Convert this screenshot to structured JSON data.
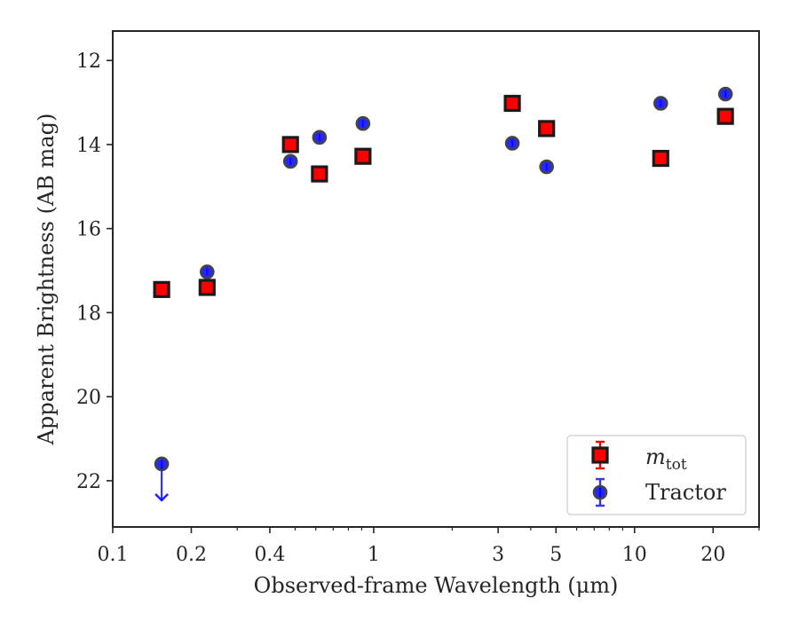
{
  "chart_data": {
    "type": "scatter",
    "xlabel": "Observed-frame Wavelength (μm)",
    "ylabel": "Apparent Brightness (AB mag)",
    "xscale": "log",
    "xlim": [
      0.1,
      30
    ],
    "ylim": [
      23.1,
      11.3
    ],
    "y_inverted": true,
    "x_major_ticks": [
      {
        "value": 0.1,
        "label": "0.1"
      },
      {
        "value": 0.2,
        "label": "0.2"
      },
      {
        "value": 0.4,
        "label": "0.4"
      },
      {
        "value": 1,
        "label": "1"
      },
      {
        "value": 3,
        "label": "3"
      },
      {
        "value": 5,
        "label": "5"
      },
      {
        "value": 10,
        "label": "10"
      },
      {
        "value": 20,
        "label": "20"
      }
    ],
    "x_minor_ticks": [
      0.3,
      0.5,
      0.6,
      0.7,
      0.8,
      0.9,
      2,
      4,
      6,
      7,
      8,
      9,
      30
    ],
    "y_ticks": [
      {
        "value": 12,
        "label": "12"
      },
      {
        "value": 14,
        "label": "14"
      },
      {
        "value": 16,
        "label": "16"
      },
      {
        "value": 18,
        "label": "18"
      },
      {
        "value": 20,
        "label": "20"
      },
      {
        "value": 22,
        "label": "22"
      }
    ],
    "grid": false,
    "legend_position": "lower right",
    "series": [
      {
        "name_main": "m",
        "name_sub": "tot",
        "marker": "square",
        "color": "#ff0000",
        "edge_color": "#1a1a1a",
        "points": [
          {
            "x": 0.154,
            "y": 17.45
          },
          {
            "x": 0.23,
            "y": 17.4
          },
          {
            "x": 0.48,
            "y": 14.0
          },
          {
            "x": 0.62,
            "y": 14.7
          },
          {
            "x": 0.91,
            "y": 14.28
          },
          {
            "x": 3.4,
            "y": 13.02
          },
          {
            "x": 4.6,
            "y": 13.62
          },
          {
            "x": 12.6,
            "y": 14.33
          },
          {
            "x": 22.3,
            "y": 13.33
          }
        ]
      },
      {
        "name": "Tractor",
        "marker": "circle",
        "color": "#0000ff",
        "edge_color": "#444444",
        "points": [
          {
            "x": 0.154,
            "y": 21.6,
            "upper_limit": true
          },
          {
            "x": 0.23,
            "y": 17.03
          },
          {
            "x": 0.48,
            "y": 14.4
          },
          {
            "x": 0.62,
            "y": 13.83
          },
          {
            "x": 0.91,
            "y": 13.5
          },
          {
            "x": 3.4,
            "y": 13.97
          },
          {
            "x": 4.6,
            "y": 14.53
          },
          {
            "x": 12.6,
            "y": 13.02
          },
          {
            "x": 22.3,
            "y": 12.8
          }
        ]
      }
    ]
  }
}
